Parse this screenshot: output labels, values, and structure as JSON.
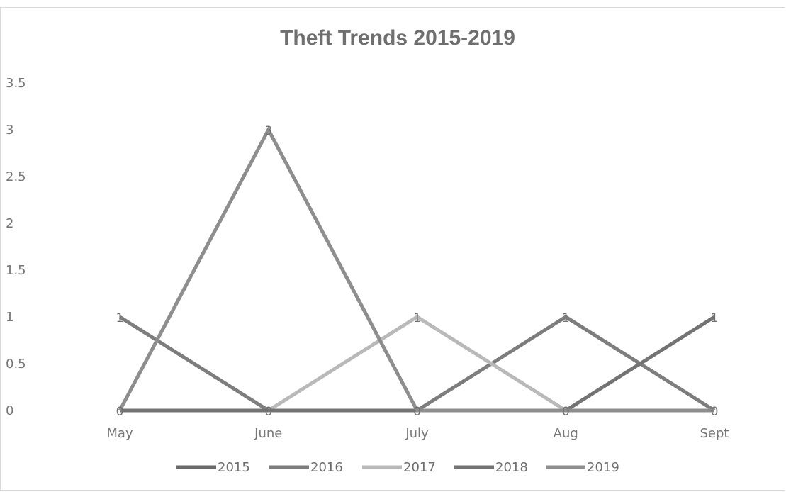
{
  "chart_data": {
    "type": "line",
    "title": "Theft Trends 2015-2019",
    "categories": [
      "May",
      "June",
      "July",
      "Aug",
      "Sept"
    ],
    "y_ticks": [
      "0",
      "0.5",
      "1",
      "1.5",
      "2",
      "2.5",
      "3",
      "3.5"
    ],
    "ylim": [
      0,
      3.5
    ],
    "grid": false,
    "legend_position": "bottom",
    "series": [
      {
        "name": "2015",
        "values": [
          0,
          0,
          0,
          0,
          0
        ],
        "color": "#6a6a6a"
      },
      {
        "name": "2016",
        "values": [
          1,
          0,
          0,
          1,
          0
        ],
        "color": "#7d7d7d"
      },
      {
        "name": "2017",
        "values": [
          0,
          0,
          1,
          0,
          0
        ],
        "color": "#b9b9b9"
      },
      {
        "name": "2018",
        "values": [
          0,
          0,
          0,
          0,
          1
        ],
        "color": "#737373"
      },
      {
        "name": "2019",
        "values": [
          0,
          3,
          0,
          0,
          0
        ],
        "color": "#8e8e8e"
      }
    ],
    "data_labels": [
      {
        "category": "May",
        "labels": [
          "1",
          "0"
        ]
      },
      {
        "category": "June",
        "labels": [
          "3",
          "0"
        ]
      },
      {
        "category": "July",
        "labels": [
          "1",
          "0"
        ]
      },
      {
        "category": "Aug",
        "labels": [
          "1",
          "0"
        ]
      },
      {
        "category": "Sept",
        "labels": [
          "1",
          "0"
        ]
      }
    ]
  }
}
